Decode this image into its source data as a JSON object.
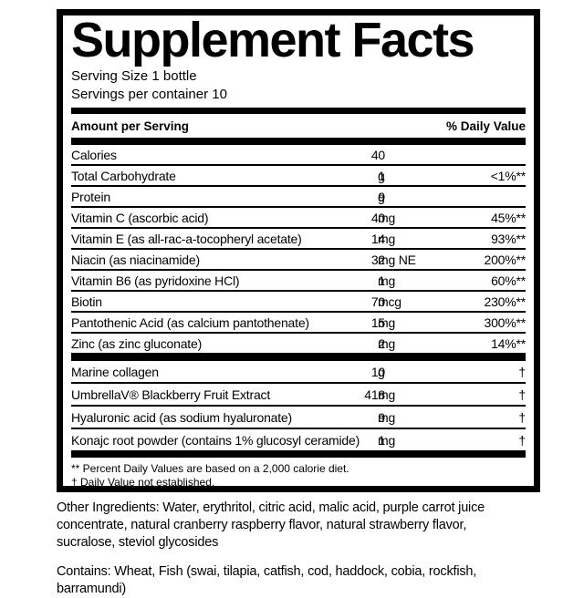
{
  "colors": {
    "ink": "#000000",
    "background": "#ffffff"
  },
  "panel": {
    "title": "Supplement Facts",
    "serving_size": "Serving Size 1 bottle",
    "servings_per_container": "Servings per container 10",
    "header": {
      "left": "Amount per Serving",
      "right": "% Daily Value"
    },
    "nutrients": [
      {
        "name": "Calories",
        "amount": "40",
        "unit": "",
        "dv": ""
      },
      {
        "name": "Total Carbohydrate",
        "amount": "1",
        "unit": "g",
        "dv": "<1%**"
      },
      {
        "name": "Protein",
        "amount": "9",
        "unit": "g",
        "dv": ""
      },
      {
        "name": "Vitamin C (ascorbic acid)",
        "amount": "40",
        "unit": "mg",
        "dv": "45%**"
      },
      {
        "name": "Vitamin E (as all-rac-a-tocopheryl acetate)",
        "amount": "14",
        "unit": "mg",
        "dv": "93%**"
      },
      {
        "name": "Niacin (as niacinamide)",
        "amount": "32",
        "unit": "mg NE",
        "dv": "200%**"
      },
      {
        "name": "Vitamin B6 (as pyridoxine HCl)",
        "amount": "1",
        "unit": "mg",
        "dv": "60%**"
      },
      {
        "name": "Biotin",
        "amount": "70",
        "unit": "mcg",
        "dv": "230%**"
      },
      {
        "name": "Pantothenic Acid (as calcium pantothenate)",
        "amount": "15",
        "unit": "mg",
        "dv": "300%**"
      },
      {
        "name": "Zinc (as zinc gluconate)",
        "amount": "2",
        "unit": "mg",
        "dv": "14%**"
      }
    ],
    "botanicals": [
      {
        "name": "Marine collagen",
        "amount": "10",
        "unit": "g",
        "dv": "†"
      },
      {
        "name": "UmbrellaV® Blackberry Fruit Extract",
        "amount": "418",
        "unit": "mg",
        "dv": "†"
      },
      {
        "name": "Hyaluronic acid (as sodium hyaluronate)",
        "amount": "9",
        "unit": "mg",
        "dv": "†"
      },
      {
        "name": "Konajc root powder (contains 1% glucosyl ceramide)",
        "amount": "1",
        "unit": "mg",
        "dv": "†"
      }
    ],
    "footnotes": [
      "** Percent Daily Values are based on a 2,000 calorie diet.",
      "† Daily Value not established."
    ]
  },
  "below_panel": {
    "other_ingredients": "Other Ingredients: Water, erythritol, citric acid, malic acid, purple carrot juice concentrate, natural cranberry raspberry flavor, natural strawberry flavor, sucralose, steviol glycosides",
    "contains": "Contains: Wheat, Fish (swai, tilapia, catfish, cod, haddock, cobia, rockfish, barramundi)"
  }
}
